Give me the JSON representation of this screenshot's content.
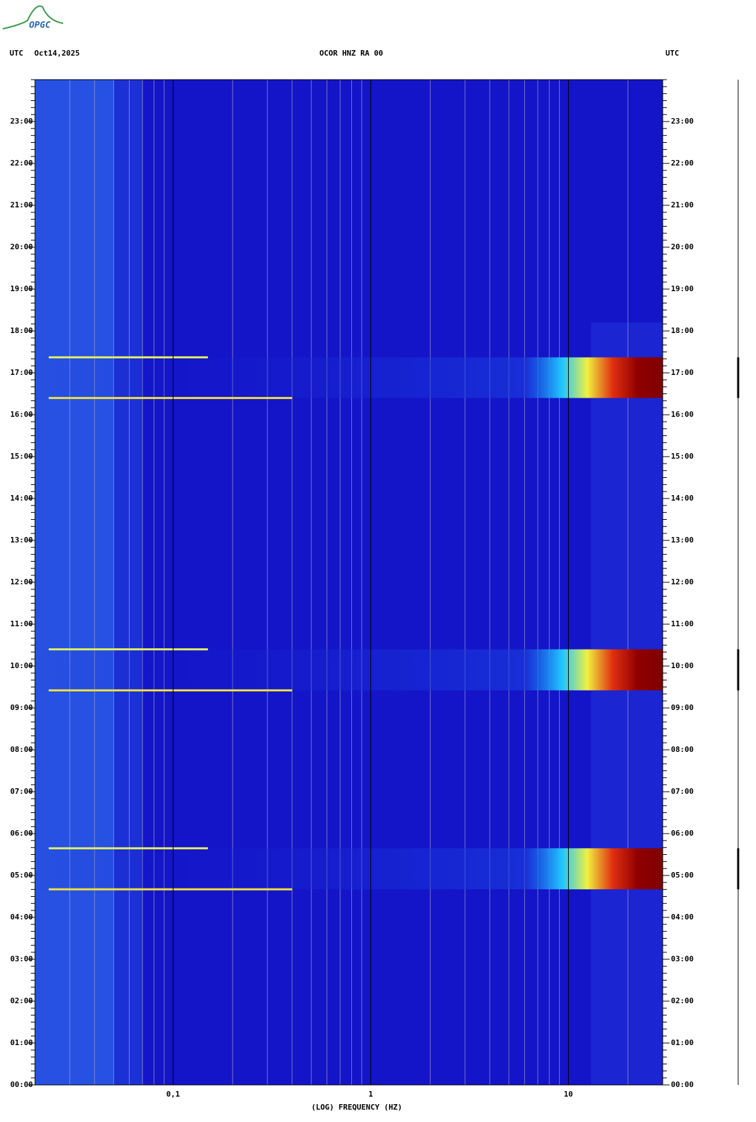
{
  "chart_data": {
    "type": "spectrogram",
    "logo": "OPGC",
    "left_header": "UTC",
    "date": "Oct14,2025",
    "title": "OCOR HNZ RA 00",
    "right_header": "UTC",
    "x_label": "(LOG) FREQUENCY (HZ)",
    "x_log": true,
    "xlim": [
      0.02,
      30
    ],
    "xticks": [
      {
        "value": 0.1,
        "label": "0,1"
      },
      1,
      10
    ],
    "ylim": [
      0,
      24
    ],
    "yticks": [
      {
        "value": 0,
        "label": "00:00"
      },
      {
        "value": 1,
        "label": "01:00"
      },
      {
        "value": 2,
        "label": "02:00"
      },
      {
        "value": 3,
        "label": "03:00"
      },
      {
        "value": 4,
        "label": "04:00"
      },
      {
        "value": 5,
        "label": "05:00"
      },
      {
        "value": 6,
        "label": "06:00"
      },
      {
        "value": 7,
        "label": "07:00"
      },
      {
        "value": 8,
        "label": "08:00"
      },
      {
        "value": 9,
        "label": "09:00"
      },
      {
        "value": 10,
        "label": "10:00"
      },
      {
        "value": 11,
        "label": "11:00"
      },
      {
        "value": 12,
        "label": "12:00"
      },
      {
        "value": 13,
        "label": "13:00"
      },
      {
        "value": 14,
        "label": "14:00"
      },
      {
        "value": 15,
        "label": "15:00"
      },
      {
        "value": 16,
        "label": "16:00"
      },
      {
        "value": 17,
        "label": "17:00"
      },
      {
        "value": 18,
        "label": "18:00"
      },
      {
        "value": 19,
        "label": "19:00"
      },
      {
        "value": 20,
        "label": "20:00"
      },
      {
        "value": 21,
        "label": "21:00"
      },
      {
        "value": 22,
        "label": "22:00"
      },
      {
        "value": 23,
        "label": "23:00"
      }
    ],
    "events": [
      {
        "start": 4.67,
        "end": 5.65
      },
      {
        "start": 9.42,
        "end": 10.4
      },
      {
        "start": 16.4,
        "end": 17.37
      }
    ]
  }
}
